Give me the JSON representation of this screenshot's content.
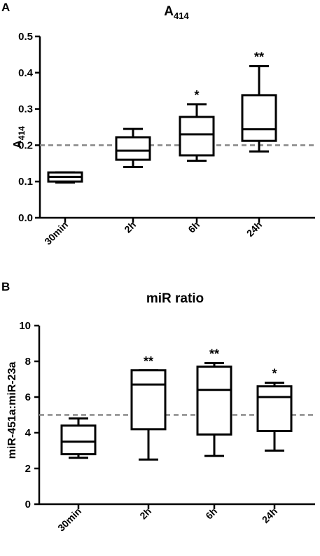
{
  "chart_data": [
    {
      "panel": "A",
      "type": "box",
      "title": "A",
      "title_sub": "414",
      "ylabel": "A",
      "ylabel_sub": "414",
      "categories": [
        "30min",
        "2h",
        "6h",
        "24h"
      ],
      "yticks": [
        "0.0",
        "0.1",
        "0.2",
        "0.3",
        "0.4",
        "0.5"
      ],
      "ylim": [
        0,
        0.5
      ],
      "reference_line": 0.2,
      "boxes": [
        {
          "min": 0.097,
          "q1": 0.1,
          "median": 0.113,
          "q3": 0.125,
          "max": 0.125,
          "sig": ""
        },
        {
          "min": 0.14,
          "q1": 0.16,
          "median": 0.185,
          "q3": 0.222,
          "max": 0.245,
          "sig": ""
        },
        {
          "min": 0.157,
          "q1": 0.172,
          "median": 0.23,
          "q3": 0.278,
          "max": 0.313,
          "sig": "*"
        },
        {
          "min": 0.183,
          "q1": 0.212,
          "median": 0.244,
          "q3": 0.338,
          "max": 0.418,
          "sig": "**"
        }
      ]
    },
    {
      "panel": "B",
      "type": "box",
      "title": "miR ratio",
      "ylabel": "miR-451a:miR-23a",
      "categories": [
        "30min",
        "2h",
        "6h",
        "24h"
      ],
      "yticks": [
        "0",
        "2",
        "4",
        "6",
        "8",
        "10"
      ],
      "ylim": [
        0,
        10
      ],
      "reference_line": 5,
      "boxes": [
        {
          "min": 2.6,
          "q1": 2.8,
          "median": 3.5,
          "q3": 4.4,
          "max": 4.8,
          "sig": ""
        },
        {
          "min": 2.5,
          "q1": 4.2,
          "median": 6.7,
          "q3": 7.5,
          "max": 7.5,
          "sig": "**"
        },
        {
          "min": 2.7,
          "q1": 3.9,
          "median": 6.4,
          "q3": 7.7,
          "max": 7.9,
          "sig": "**"
        },
        {
          "min": 3.0,
          "q1": 4.1,
          "median": 6.0,
          "q3": 6.6,
          "max": 6.8,
          "sig": "*"
        }
      ]
    }
  ]
}
